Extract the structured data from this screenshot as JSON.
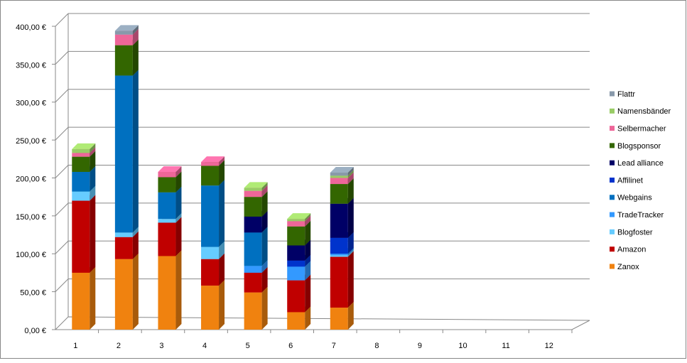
{
  "chart_data": {
    "type": "bar3d_stacked",
    "categories": [
      "1",
      "2",
      "3",
      "4",
      "5",
      "6",
      "7",
      "8",
      "9",
      "10",
      "11",
      "12"
    ],
    "ylim": [
      0,
      400
    ],
    "yticks": [
      {
        "value": 0,
        "label": "0,00 €"
      },
      {
        "value": 50,
        "label": "50,00 €"
      },
      {
        "value": 100,
        "label": "100,00 €"
      },
      {
        "value": 150,
        "label": "150,00 €"
      },
      {
        "value": 200,
        "label": "200,00 €"
      },
      {
        "value": 250,
        "label": "250,00 €"
      },
      {
        "value": 300,
        "label": "300,00 €"
      },
      {
        "value": 350,
        "label": "350,00 €"
      },
      {
        "value": 400,
        "label": "400,00 €"
      }
    ],
    "grid": true,
    "legend": "right",
    "series": [
      {
        "name": "Zanox",
        "color": "#f0820f",
        "values": [
          75,
          93,
          97,
          58,
          49,
          23,
          29,
          0,
          0,
          0,
          0,
          0
        ]
      },
      {
        "name": "Amazon",
        "color": "#c00000",
        "values": [
          95,
          29,
          44,
          35,
          26,
          42,
          67,
          0,
          0,
          0,
          0,
          0
        ]
      },
      {
        "name": "Blogfoster",
        "color": "#66ccff",
        "values": [
          12,
          6,
          5,
          16,
          0,
          0,
          2,
          0,
          0,
          0,
          0,
          0
        ]
      },
      {
        "name": "TradeTracker",
        "color": "#3399ff",
        "values": [
          0,
          0,
          0,
          0,
          9,
          18,
          2,
          0,
          0,
          0,
          0,
          0
        ]
      },
      {
        "name": "Webgains",
        "color": "#0070c0",
        "values": [
          26,
          207,
          35,
          81,
          44,
          0,
          0,
          0,
          0,
          0,
          0,
          0
        ]
      },
      {
        "name": "Affilinet",
        "color": "#0033cc",
        "values": [
          0,
          0,
          0,
          0,
          0,
          8,
          21,
          0,
          0,
          0,
          0,
          0
        ]
      },
      {
        "name": "Lead alliance",
        "color": "#000066",
        "values": [
          0,
          0,
          0,
          0,
          21,
          20,
          45,
          0,
          0,
          0,
          0,
          0
        ]
      },
      {
        "name": "Blogsponsor",
        "color": "#336600",
        "values": [
          20,
          40,
          20,
          26,
          26,
          25,
          26,
          0,
          0,
          0,
          0,
          0
        ]
      },
      {
        "name": "Selbermacher",
        "color": "#ee6699",
        "values": [
          5,
          14,
          7,
          5,
          8,
          7,
          8,
          0,
          0,
          0,
          0,
          0
        ]
      },
      {
        "name": "Namensbänder",
        "color": "#99cc66",
        "values": [
          5,
          0,
          0,
          0,
          4,
          3,
          3,
          0,
          0,
          0,
          0,
          0
        ]
      },
      {
        "name": "Flattr",
        "color": "#8899aa",
        "values": [
          0,
          5,
          0,
          0,
          0,
          0,
          4,
          0,
          0,
          0,
          0,
          0
        ]
      }
    ]
  }
}
